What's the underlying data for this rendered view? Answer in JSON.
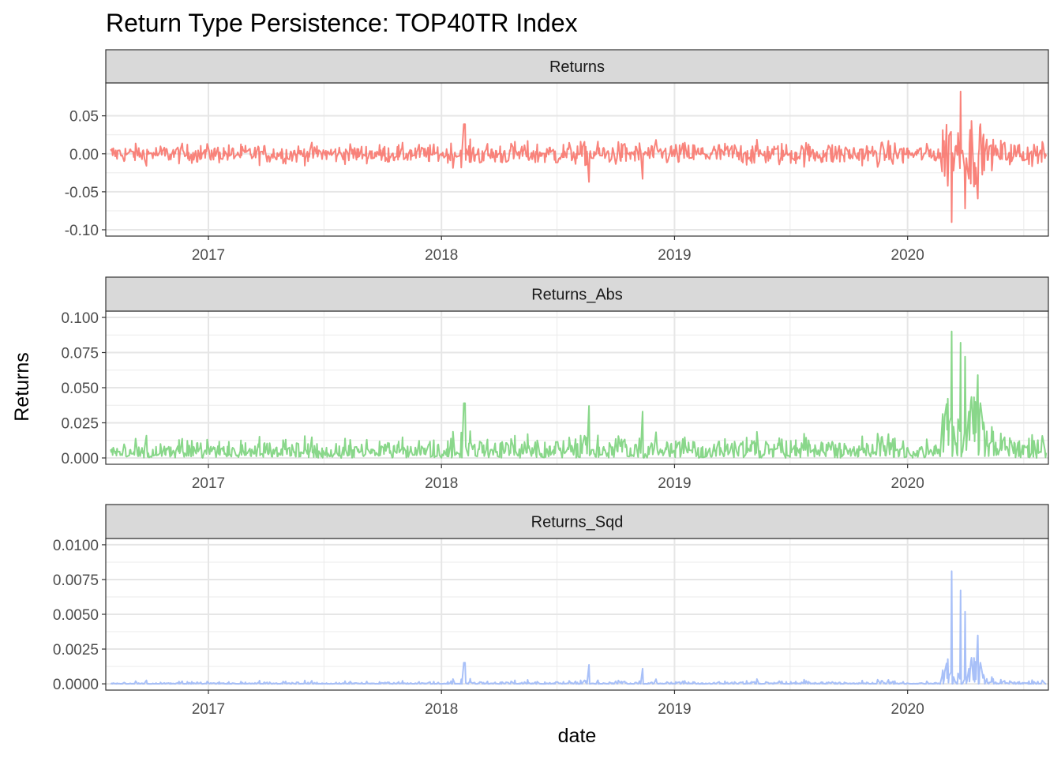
{
  "chart_data": {
    "type": "line",
    "title": "Return Type Persistence: TOP40TR Index",
    "xlabel": "date",
    "ylabel": "Returns",
    "x_range": [
      "2016-07-28",
      "2020-08-06"
    ],
    "x_ticks": [
      "2017",
      "2018",
      "2019",
      "2020"
    ],
    "grid": true,
    "legend": "none",
    "facets": [
      {
        "strip": "Returns",
        "color": "#F8766D",
        "ylim": [
          -0.1,
          0.085
        ],
        "y_ticks": [
          "0.05",
          "0.00",
          "-0.05",
          "-0.10"
        ],
        "y_tick_values": [
          0.05,
          0.0,
          -0.05,
          -0.1
        ],
        "series_summary": [
          {
            "period": "2016-08 to 2017-12",
            "typical_range": [
              -0.02,
              0.02
            ]
          },
          {
            "period": "2018-01 to 2019-12",
            "typical_range": [
              -0.03,
              0.03
            ],
            "extremes": [
              -0.037,
              0.04
            ]
          },
          {
            "period": "2020-03 to 2020-04",
            "min": -0.1,
            "max": 0.082
          },
          {
            "period": "2020-05 to 2020-08",
            "typical_range": [
              -0.03,
              0.037
            ]
          }
        ]
      },
      {
        "strip": "Returns_Abs",
        "color": "#7CD37D",
        "ylim": [
          0,
          0.1
        ],
        "y_ticks": [
          "0.100",
          "0.075",
          "0.050",
          "0.025",
          "0.000"
        ],
        "y_tick_values": [
          0.1,
          0.075,
          0.05,
          0.025,
          0.0
        ],
        "series_summary": [
          {
            "period": "2016-08 to 2017-12",
            "typical_range": [
              0,
              0.023
            ]
          },
          {
            "period": "2018-01 to 2019-12",
            "typical_range": [
              0,
              0.037
            ],
            "max": 0.04
          },
          {
            "period": "2020-03 to 2020-04",
            "max": 0.1
          },
          {
            "period": "2020-05 to 2020-08",
            "typical_range": [
              0,
              0.037
            ]
          }
        ]
      },
      {
        "strip": "Returns_Sqd",
        "color": "#9EB9F7",
        "ylim": [
          0,
          0.01
        ],
        "y_ticks": [
          "0.0100",
          "0.0075",
          "0.0050",
          "0.0025",
          "0.0000"
        ],
        "y_tick_values": [
          0.01,
          0.0075,
          0.005,
          0.0025,
          0.0
        ],
        "series_summary": [
          {
            "period": "2016-08 to 2017-12",
            "typical_range": [
              0,
              0.0005
            ]
          },
          {
            "period": "2018-01 to 2019-12",
            "typical_range": [
              0,
              0.0014
            ],
            "max": 0.0016
          },
          {
            "period": "2020-03 to 2020-04",
            "max": 0.0099
          },
          {
            "period": "2020-05 to 2020-08",
            "typical_range": [
              0,
              0.0014
            ]
          }
        ]
      }
    ]
  }
}
